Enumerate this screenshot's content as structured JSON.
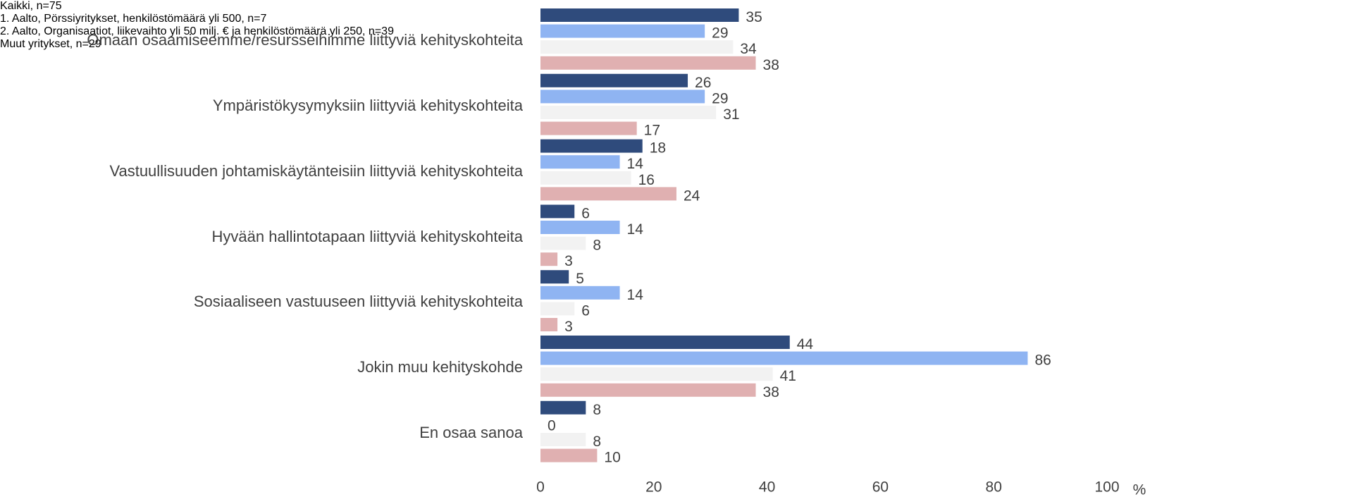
{
  "chart_data": {
    "type": "barh",
    "categories": [
      "Omaan osaamiseemme/resursseihimme liittyviä kehityskohteita",
      "Ympäristökysymyksiin liittyviä kehityskohteita",
      "Vastuullisuuden johtamiskäytänteisiin liittyviä kehityskohteita",
      "Hyvään hallintotapaan liittyviä kehityskohteita",
      "Sosiaaliseen vastuuseen liittyviä kehityskohteita",
      "Jokin muu kehityskohde",
      "En osaa sanoa"
    ],
    "series": [
      {
        "name": "Kaikki, n=75",
        "color": "#2f4b7c",
        "values": [
          35,
          26,
          18,
          6,
          5,
          44,
          8
        ]
      },
      {
        "name": "1. Aalto, Pörssiyritykset, henkilöstömäärä yli 500, n=7",
        "color": "#8fb4f2",
        "values": [
          29,
          29,
          14,
          14,
          14,
          86,
          0
        ]
      },
      {
        "name": "2. Aalto, Organisaatiot, liikevaihto yli 50 milj. € ja henkilöstömäärä yli 250, n=39",
        "color": "#f2f2f2",
        "values": [
          34,
          31,
          16,
          8,
          6,
          41,
          8
        ]
      },
      {
        "name": "Muut yritykset, n=29",
        "color": "#e0b0b1",
        "values": [
          38,
          17,
          24,
          3,
          3,
          38,
          10
        ]
      }
    ],
    "xlabel": "%",
    "xlim": [
      0,
      100
    ],
    "xticks": [
      0,
      20,
      40,
      60,
      80,
      100
    ],
    "legend": "right",
    "grid": false
  }
}
